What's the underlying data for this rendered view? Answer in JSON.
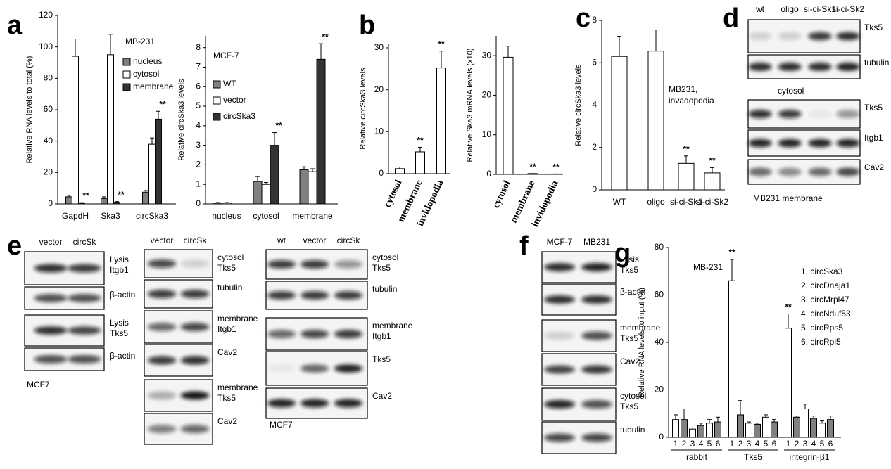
{
  "panel_labels": [
    "a",
    "b",
    "c",
    "d",
    "e",
    "f",
    "g"
  ],
  "chart_data": [
    {
      "type": "bar",
      "annotation": [
        "MB-231"
      ],
      "y_label": "Relative RNA levels to total (%)",
      "categories": [
        "GapdH",
        "Ska3",
        "circSka3"
      ],
      "series": [
        {
          "name": "nucleus",
          "color": "#808080",
          "values": [
            4.5,
            3.5,
            7.5
          ],
          "errors": [
            1,
            1,
            1
          ],
          "stars": [
            null,
            null,
            null
          ]
        },
        {
          "name": "cytosol",
          "color": "#ffffff",
          "values": [
            94,
            95,
            38
          ],
          "errors": [
            11,
            13,
            4
          ],
          "stars": [
            null,
            null,
            null
          ]
        },
        {
          "name": "membrane",
          "color": "#333333",
          "values": [
            0.5,
            1,
            54
          ],
          "errors": [
            0.3,
            0.5,
            5
          ],
          "stars": [
            "**",
            "**",
            "**"
          ]
        }
      ],
      "ylim": [
        0,
        120
      ],
      "yticks": [
        0,
        20,
        40,
        60,
        80,
        100,
        120
      ]
    },
    {
      "type": "bar",
      "annotation": [
        "MCF-7"
      ],
      "y_label": "Relative circSka3 levels",
      "categories": [
        "nucleus",
        "cytosol",
        "membrane"
      ],
      "series": [
        {
          "name": "WT",
          "color": "#808080",
          "values": [
            0.05,
            1.15,
            1.75
          ],
          "errors": [
            0.02,
            0.25,
            0.15
          ],
          "stars": [
            null,
            null,
            null
          ]
        },
        {
          "name": "vector",
          "color": "#ffffff",
          "values": [
            0.05,
            1.0,
            1.65
          ],
          "errors": [
            0.02,
            0.1,
            0.15
          ],
          "stars": [
            null,
            null,
            null
          ]
        },
        {
          "name": "circSka3",
          "color": "#333333",
          "values": [
            0,
            3.0,
            7.4
          ],
          "errors": [
            0,
            0.65,
            0.8
          ],
          "stars": [
            null,
            "**",
            "**"
          ]
        }
      ],
      "ylim": [
        0,
        8.6
      ],
      "yticks": [
        0,
        1,
        2,
        3,
        4,
        5,
        6,
        7,
        8
      ]
    },
    {
      "type": "bar",
      "y_label": "Relative circSka3 levels",
      "categories": [
        "cytosol",
        "membrane",
        "invidopodia"
      ],
      "color": "#ffffff",
      "values": [
        1.2,
        5.2,
        25.2
      ],
      "errors": [
        0.4,
        1.1,
        4
      ],
      "stars": [
        null,
        "**",
        "**"
      ],
      "ylim": [
        0,
        31
      ],
      "yticks": [
        0,
        10,
        20,
        30
      ]
    },
    {
      "type": "bar",
      "y_label": "Relative Ska3 mRNA levels (x10)",
      "categories": [
        "cytosol",
        "membrane",
        "invidopodia"
      ],
      "color": "#ffffff",
      "values": [
        29.6,
        0.2,
        0.1
      ],
      "errors": [
        2.8,
        0,
        0
      ],
      "stars": [
        null,
        "**",
        "**"
      ],
      "ylim": [
        0,
        35
      ],
      "yticks": [
        0,
        10,
        20,
        30
      ]
    },
    {
      "type": "bar",
      "annotation": [
        "MB231,",
        "invadopodia"
      ],
      "y_label": "Relative circSka3 levels",
      "categories": [
        "WT",
        "oligo",
        "si-ci-Sk1",
        "si-ci-Sk2"
      ],
      "color": "#ffffff",
      "values": [
        6.3,
        6.55,
        1.25,
        0.8
      ],
      "errors": [
        0.95,
        1.0,
        0.35,
        0.25
      ],
      "stars": [
        null,
        null,
        "**",
        "**"
      ],
      "ylim": [
        0,
        8
      ],
      "yticks": [
        0,
        2,
        4,
        6,
        8
      ]
    },
    {
      "type": "bar",
      "annotation": [
        "MB-231"
      ],
      "y_label": "Relative RNA levels to input (%)",
      "groups": [
        "rabbit",
        "Tks5",
        "integrin-β1"
      ],
      "categories": [
        "1",
        "2",
        "3",
        "4",
        "5",
        "6",
        "1",
        "2",
        "3",
        "4",
        "5",
        "6",
        "1",
        "2",
        "3",
        "4",
        "5",
        "6"
      ],
      "colors": [
        "#ffffff",
        "#808080",
        "#ffffff",
        "#808080",
        "#ffffff",
        "#808080",
        "#ffffff",
        "#808080",
        "#ffffff",
        "#808080",
        "#ffffff",
        "#808080",
        "#ffffff",
        "#808080",
        "#ffffff",
        "#808080",
        "#ffffff",
        "#808080"
      ],
      "values": [
        7.5,
        7.5,
        3.5,
        5,
        6,
        6.5,
        66,
        9.5,
        6,
        5.5,
        8.5,
        6.5,
        46,
        8.5,
        12,
        8,
        6,
        7.5
      ],
      "errors": [
        2,
        4.5,
        0.5,
        1,
        1.5,
        2,
        9,
        6,
        0.5,
        0.5,
        1,
        1,
        6,
        0.5,
        2,
        1,
        1,
        1.5
      ],
      "stars": [
        null,
        null,
        null,
        null,
        null,
        null,
        "**",
        null,
        null,
        null,
        null,
        null,
        "**",
        null,
        null,
        null,
        null,
        null
      ],
      "legend_items": [
        "1. circSka3",
        "2. circDnaja1",
        "3. circMrpl47",
        "4. circNduf53",
        "5. circRps5",
        "6. circRpl5"
      ],
      "ylim": [
        0,
        80
      ],
      "yticks": [
        0,
        20,
        40,
        60,
        80
      ]
    }
  ],
  "blots": [
    {
      "lanes": [
        "wt",
        "oligo",
        "si-ci-Sk1",
        "si-ci-Sk2"
      ],
      "rows": [
        {
          "label": [
            "Tks5"
          ]
        },
        {
          "label": [
            "tubulin"
          ]
        },
        {
          "label": [
            "Tks5"
          ]
        },
        {
          "label": [
            "Itgb1"
          ]
        },
        {
          "label": [
            "Cav2"
          ]
        }
      ],
      "captions": [
        "cytosol",
        "MB231 membrane"
      ]
    },
    {
      "lanes": [
        "vector",
        "circSk"
      ],
      "rows": [
        {
          "label": [
            "Lysis",
            "Itgb1"
          ]
        },
        {
          "label": [
            "β-actin"
          ]
        },
        {
          "label": [
            "Lysis",
            "Tks5"
          ]
        },
        {
          "label": [
            "β-actin"
          ]
        }
      ],
      "captions": [
        "MCF7"
      ]
    },
    {
      "lanes": [
        "vector",
        "circSk"
      ],
      "rows": [
        {
          "label": [
            "cytosol",
            "Tks5"
          ]
        },
        {
          "label": [
            "tubulin"
          ]
        },
        {
          "label": [
            "membrane",
            "Itgb1"
          ]
        },
        {
          "label": [
            "Cav2"
          ]
        },
        {
          "label": [
            "membrane",
            "Tks5"
          ]
        },
        {
          "label": [
            "Cav2"
          ]
        }
      ]
    },
    {
      "lanes": [
        "wt",
        "vector",
        "circSk"
      ],
      "rows": [
        {
          "label": [
            "cytosol",
            "Tks5"
          ]
        },
        {
          "label": [
            "tubulin"
          ]
        },
        {
          "label": [
            "membrane",
            "Itgb1"
          ]
        },
        {
          "label": [
            "Tks5"
          ]
        },
        {
          "label": [
            "Cav2"
          ]
        }
      ],
      "captions": [
        "MCF7"
      ]
    },
    {
      "lanes": [
        "MCF-7",
        "MB231"
      ],
      "rows": [
        {
          "label": [
            "Lysis",
            "Tks5"
          ]
        },
        {
          "label": [
            "β-actin"
          ]
        },
        {
          "label": [
            "membrane",
            "Tks5"
          ]
        },
        {
          "label": [
            "Cav2"
          ]
        },
        {
          "label": [
            "cytosol",
            "Tks5"
          ]
        },
        {
          "label": [
            "tubulin"
          ]
        }
      ]
    }
  ]
}
